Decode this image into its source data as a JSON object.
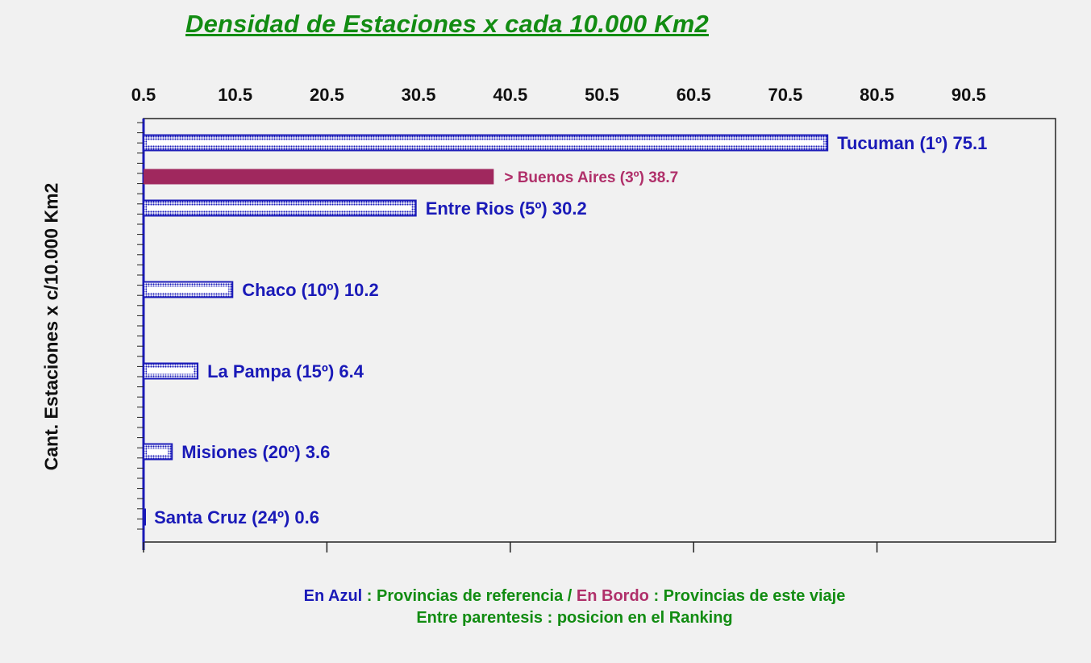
{
  "chart_data": {
    "type": "bar",
    "orientation": "horizontal",
    "title": "Densidad de Estaciones x cada 10.000 Km2",
    "xlabel": "",
    "ylabel": "Cant. Estaciones x c/10.000 Km2",
    "xlim": [
      0.5,
      100.0
    ],
    "x_ticks": [
      "0.5",
      "10.5",
      "20.5",
      "30.5",
      "40.5",
      "50.5",
      "60.5",
      "70.5",
      "80.5",
      "90.5"
    ],
    "x_tick_values": [
      0.5,
      10.5,
      20.5,
      30.5,
      40.5,
      50.5,
      60.5,
      70.5,
      80.5,
      90.5
    ],
    "x_axis_position": "top",
    "grid": false,
    "bars": [
      {
        "label": "Tucuman (1º) 75.1",
        "value": 75.1,
        "rank": 1,
        "group": "referencia"
      },
      {
        "label": "> Buenos Aires (3º) 38.7",
        "value": 38.7,
        "rank": 3,
        "group": "viaje"
      },
      {
        "label": "Entre Rios (5º) 30.2",
        "value": 30.2,
        "rank": 5,
        "group": "referencia"
      },
      {
        "label": "Chaco (10º) 10.2",
        "value": 10.2,
        "rank": 10,
        "group": "referencia"
      },
      {
        "label": "La Pampa (15º) 6.4",
        "value": 6.4,
        "rank": 15,
        "group": "referencia"
      },
      {
        "label": "Misiones (20º) 3.6",
        "value": 3.6,
        "rank": 20,
        "group": "referencia"
      },
      {
        "label": "Santa Cruz (24º) 0.6",
        "value": 0.6,
        "rank": 24,
        "group": "referencia"
      }
    ],
    "colors": {
      "referencia": "#1a1ab8",
      "viaje": "#a0285e",
      "title": "#128c12",
      "legend": "#128c12"
    }
  },
  "legend": {
    "line1": [
      {
        "text": "En Azul",
        "color": "blue"
      },
      {
        "text": " : Provincias de referencia / ",
        "color": "green"
      },
      {
        "text": "En Bordo",
        "color": "bordo"
      },
      {
        "text": " : Provincias de este viaje",
        "color": "green"
      }
    ],
    "line2": "Entre parentesis : posicion en el Ranking"
  }
}
